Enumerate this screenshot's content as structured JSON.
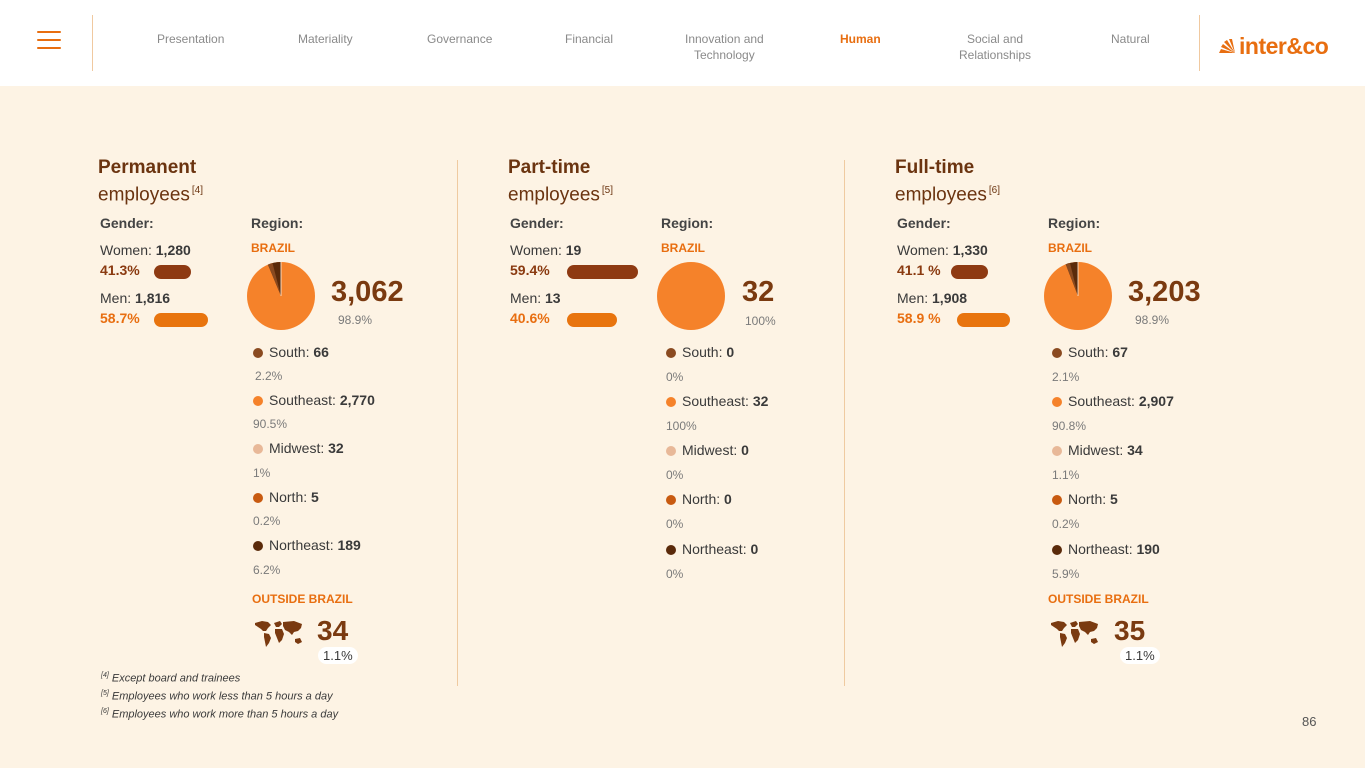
{
  "header": {
    "nav": [
      "Presentation",
      "Materiality",
      "Governance",
      "Financial",
      "Innovation and Technology",
      "Human",
      "Social and Relationships",
      "Natural"
    ],
    "nav_lines": {
      "innovation_1": "Innovation and",
      "innovation_2": "Technology",
      "social_1": "Social and",
      "social_2": "Relationships"
    },
    "active": "Human",
    "logo_text": "inter&co"
  },
  "labels": {
    "gender": "Gender:",
    "region": "Region:",
    "brazil": "BRAZIL",
    "outside": "OUTSIDE BRAZIL"
  },
  "permanent": {
    "title": "Permanent",
    "subtitle": "employees",
    "note": "[4]",
    "women_label": "Women: ",
    "women": "1,280",
    "women_pct": "41.3%",
    "women_share": 41.3,
    "men_label": "Men: ",
    "men": "1,816",
    "men_pct": "58.7%",
    "men_share": 58.7,
    "total": "3,062",
    "total_pct": "98.9%",
    "regions": [
      {
        "name": "South: ",
        "value": "66",
        "pct": "2.2%",
        "color": "#8a4a20"
      },
      {
        "name": "Southeast: ",
        "value": "2,770",
        "pct": "90.5%",
        "color": "#f5822a"
      },
      {
        "name": "Midwest: ",
        "value": "32",
        "pct": "1%",
        "color": "#e8b898"
      },
      {
        "name": "North: ",
        "value": "5",
        "pct": "0.2%",
        "color": "#c85a10"
      },
      {
        "name": "Northeast: ",
        "value": "189",
        "pct": "6.2%",
        "color": "#5a2a0a"
      }
    ],
    "outside_value": "34",
    "outside_pct": "1.1%"
  },
  "parttime": {
    "title": "Part-time",
    "subtitle": "employees",
    "note": "[5]",
    "women_label": "Women: ",
    "women": "19",
    "women_pct": "59.4%",
    "women_share": 59.4,
    "men_label": "Men: ",
    "men": "13",
    "men_pct": "40.6%",
    "men_share": 40.6,
    "total": "32",
    "total_pct": "100%",
    "regions": [
      {
        "name": "South: ",
        "value": "0",
        "pct": "0%",
        "color": "#8a4a20"
      },
      {
        "name": "Southeast: ",
        "value": "32",
        "pct": "100%",
        "color": "#f5822a"
      },
      {
        "name": "Midwest: ",
        "value": "0",
        "pct": "0%",
        "color": "#e8b898"
      },
      {
        "name": "North: ",
        "value": "0",
        "pct": "0%",
        "color": "#c85a10"
      },
      {
        "name": "Northeast: ",
        "value": "0",
        "pct": "0%",
        "color": "#5a2a0a"
      }
    ]
  },
  "fulltime": {
    "title": "Full-time",
    "subtitle": "employees",
    "note": "[6]",
    "women_label": "Women: ",
    "women": "1,330",
    "women_pct": "41.1 %",
    "women_share": 41.1,
    "men_label": "Men: ",
    "men": "1,908",
    "men_pct": "58.9 %",
    "men_share": 58.9,
    "total": "3,203",
    "total_pct": "98.9%",
    "regions": [
      {
        "name": "South: ",
        "value": "67",
        "pct": "2.1%",
        "color": "#8a4a20"
      },
      {
        "name": "Southeast: ",
        "value": "2,907",
        "pct": "90.8%",
        "color": "#f5822a"
      },
      {
        "name": "Midwest: ",
        "value": "34",
        "pct": "1.1%",
        "color": "#e8b898"
      },
      {
        "name": "North: ",
        "value": "5",
        "pct": "0.2%",
        "color": "#c85a10"
      },
      {
        "name": "Northeast: ",
        "value": "190",
        "pct": "5.9%",
        "color": "#5a2a0a"
      }
    ],
    "outside_value": "35",
    "outside_pct": "1.1%"
  },
  "footnotes": [
    {
      "mark": "[4]",
      "text": " Except board and trainees"
    },
    {
      "mark": "[5]",
      "text": " Employees who work less than 5 hours a day"
    },
    {
      "mark": "[6]",
      "text": " Employees who work more than 5 hours a day"
    }
  ],
  "page_number": "86"
}
